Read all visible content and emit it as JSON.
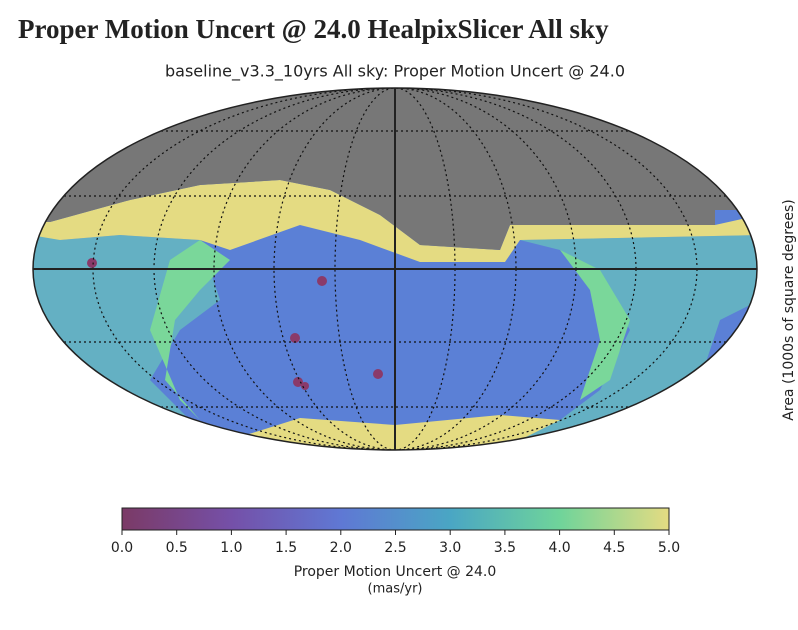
{
  "header": {
    "title": "Proper Motion Uncert @ 24.0 HealpixSlicer All sky"
  },
  "chart_data": {
    "type": "skymap",
    "title": "baseline_v3.3_10yrs All sky: Proper Motion Uncert @ 24.0",
    "side_label": "Area (1000s of square degrees)",
    "colorbar": {
      "label": "Proper Motion Uncert @ 24.0",
      "units": "(mas/yr)",
      "xlim": [
        0,
        5
      ],
      "xticks": [
        {
          "value": 0,
          "label": "0.0"
        },
        0.5,
        {
          "value": 1,
          "label": "1.0"
        },
        1.5,
        {
          "value": 2,
          "label": "2.0"
        },
        2.5,
        {
          "value": 3,
          "label": "3.0"
        },
        3.5,
        {
          "value": 4,
          "label": "4.0"
        },
        4.5,
        {
          "value": 5,
          "label": "5.0"
        }
      ],
      "colors": [
        "#7b3a66",
        "#7550a8",
        "#5f78d4",
        "#4aa6c4",
        "#6fd49a",
        "#e4db82"
      ]
    }
  }
}
